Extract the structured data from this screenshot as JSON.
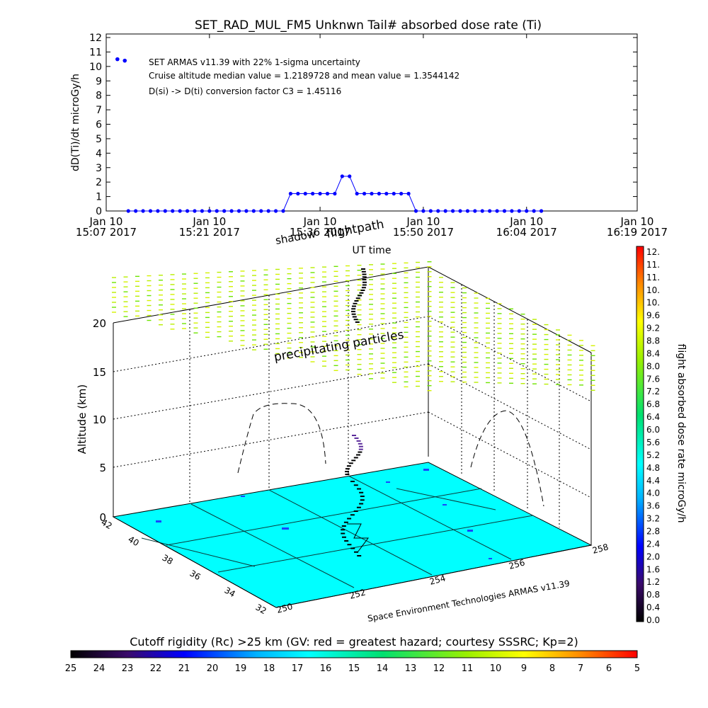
{
  "chart_data": [
    {
      "type": "line",
      "title": "SET_RAD_MUL_FM5 Unknwn Tail#  absorbed dose rate (Ti)",
      "ylabel": "dD(Ti)/dt microGy/h",
      "xlabel": "UT time",
      "ylim": [
        0,
        12
      ],
      "yticks": [
        "0",
        "1",
        "2",
        "3",
        "4",
        "5",
        "6",
        "7",
        "8",
        "9",
        "10",
        "11",
        "12"
      ],
      "xticks": [
        {
          "date": "Jan 10",
          "time": "15:07 2017"
        },
        {
          "date": "Jan 10",
          "time": "15:21 2017"
        },
        {
          "date": "Jan 10",
          "time": "15:36 2017"
        },
        {
          "date": "Jan 10",
          "time": "15:50 2017"
        },
        {
          "date": "Jan 10",
          "time": "16:04 2017"
        },
        {
          "date": "Jan 10",
          "time": "16:19 2017"
        }
      ],
      "annotations": [
        "SET ARMAS v11.39 with 22% 1-sigma uncertainty",
        "Cruise altitude median value = 1.2189728 and mean value = 1.3544142",
        "D(si) -> D(ti) conversion factor C3 = 1.45116"
      ],
      "series": [
        {
          "color": "#0000ff",
          "x": [
            "15:10",
            "15:11",
            "15:12",
            "15:13",
            "15:14",
            "15:15",
            "15:16",
            "15:17",
            "15:18",
            "15:19",
            "15:20",
            "15:21",
            "15:22",
            "15:23",
            "15:24",
            "15:25",
            "15:26",
            "15:27",
            "15:28",
            "15:29",
            "15:30",
            "15:31",
            "15:32",
            "15:33",
            "15:34",
            "15:35",
            "15:36",
            "15:37",
            "15:38",
            "15:39",
            "15:40",
            "15:41",
            "15:42",
            "15:43",
            "15:44",
            "15:45",
            "15:46",
            "15:47",
            "15:48",
            "15:49",
            "15:50",
            "15:51",
            "15:52",
            "15:53",
            "15:54",
            "15:55",
            "15:56",
            "15:57",
            "15:58",
            "15:59",
            "16:00",
            "16:01",
            "16:02",
            "16:03",
            "16:04",
            "16:05",
            "16:06"
          ],
          "y": [
            0,
            0,
            0,
            0,
            0,
            0,
            0,
            0,
            0,
            0,
            0,
            0,
            0,
            0,
            0,
            0,
            0,
            0,
            0,
            0,
            0,
            0,
            1.2,
            1.2,
            1.2,
            1.2,
            1.2,
            1.2,
            1.2,
            2.4,
            2.4,
            1.2,
            1.2,
            1.2,
            1.2,
            1.2,
            1.2,
            1.2,
            1.2,
            0,
            0,
            0,
            0,
            0,
            0,
            0,
            0,
            0,
            0,
            0,
            0,
            0,
            0,
            0,
            0,
            0,
            0
          ]
        }
      ],
      "legend_points": [
        {
          "x": "15:09",
          "y": 10.5
        },
        {
          "x": "15:10",
          "y": 10.4
        }
      ]
    },
    {
      "type": "scatter",
      "subtype": "3d",
      "zlabel": "Altitude (km)",
      "ztick_labels": [
        "0",
        "5",
        "10",
        "15",
        "20"
      ],
      "lat_tick_labels": [
        "42",
        "40",
        "38",
        "36",
        "34",
        "32"
      ],
      "lon_tick_labels": [
        "250",
        "252",
        "254",
        "256",
        "258"
      ],
      "labels": [
        "shadow",
        "flightpath",
        "precipitating particles"
      ],
      "credit": "Space Environment Technologies ARMAS v11.39",
      "colorbar_label": "flight absorbed dose rate microGy/h",
      "colorbar_ticks": [
        "12.",
        "11.",
        "11.",
        "10.",
        "10.",
        "9.6",
        "9.2",
        "8.8",
        "8.4",
        "8.0",
        "7.6",
        "7.2",
        "6.8",
        "6.4",
        "6.0",
        "5.6",
        "5.2",
        "4.8",
        "4.4",
        "4.0",
        "3.6",
        "3.2",
        "2.8",
        "2.4",
        "2.0",
        "1.6",
        "1.2",
        "0.8",
        "0.4",
        "0.0"
      ],
      "rigidity_label": "Cutoff rigidity (Rc) >25 km (GV: red = greatest hazard; courtesy SSSRC; Kp=2)",
      "rigidity_ticks": [
        "25",
        "24",
        "23",
        "22",
        "21",
        "20",
        "19",
        "18",
        "17",
        "16",
        "15",
        "14",
        "13",
        "12",
        "11",
        "10",
        "9",
        "8",
        "7",
        "6",
        "5"
      ],
      "surface_color": "#00ffff",
      "precip_color": "#d4f200"
    }
  ]
}
